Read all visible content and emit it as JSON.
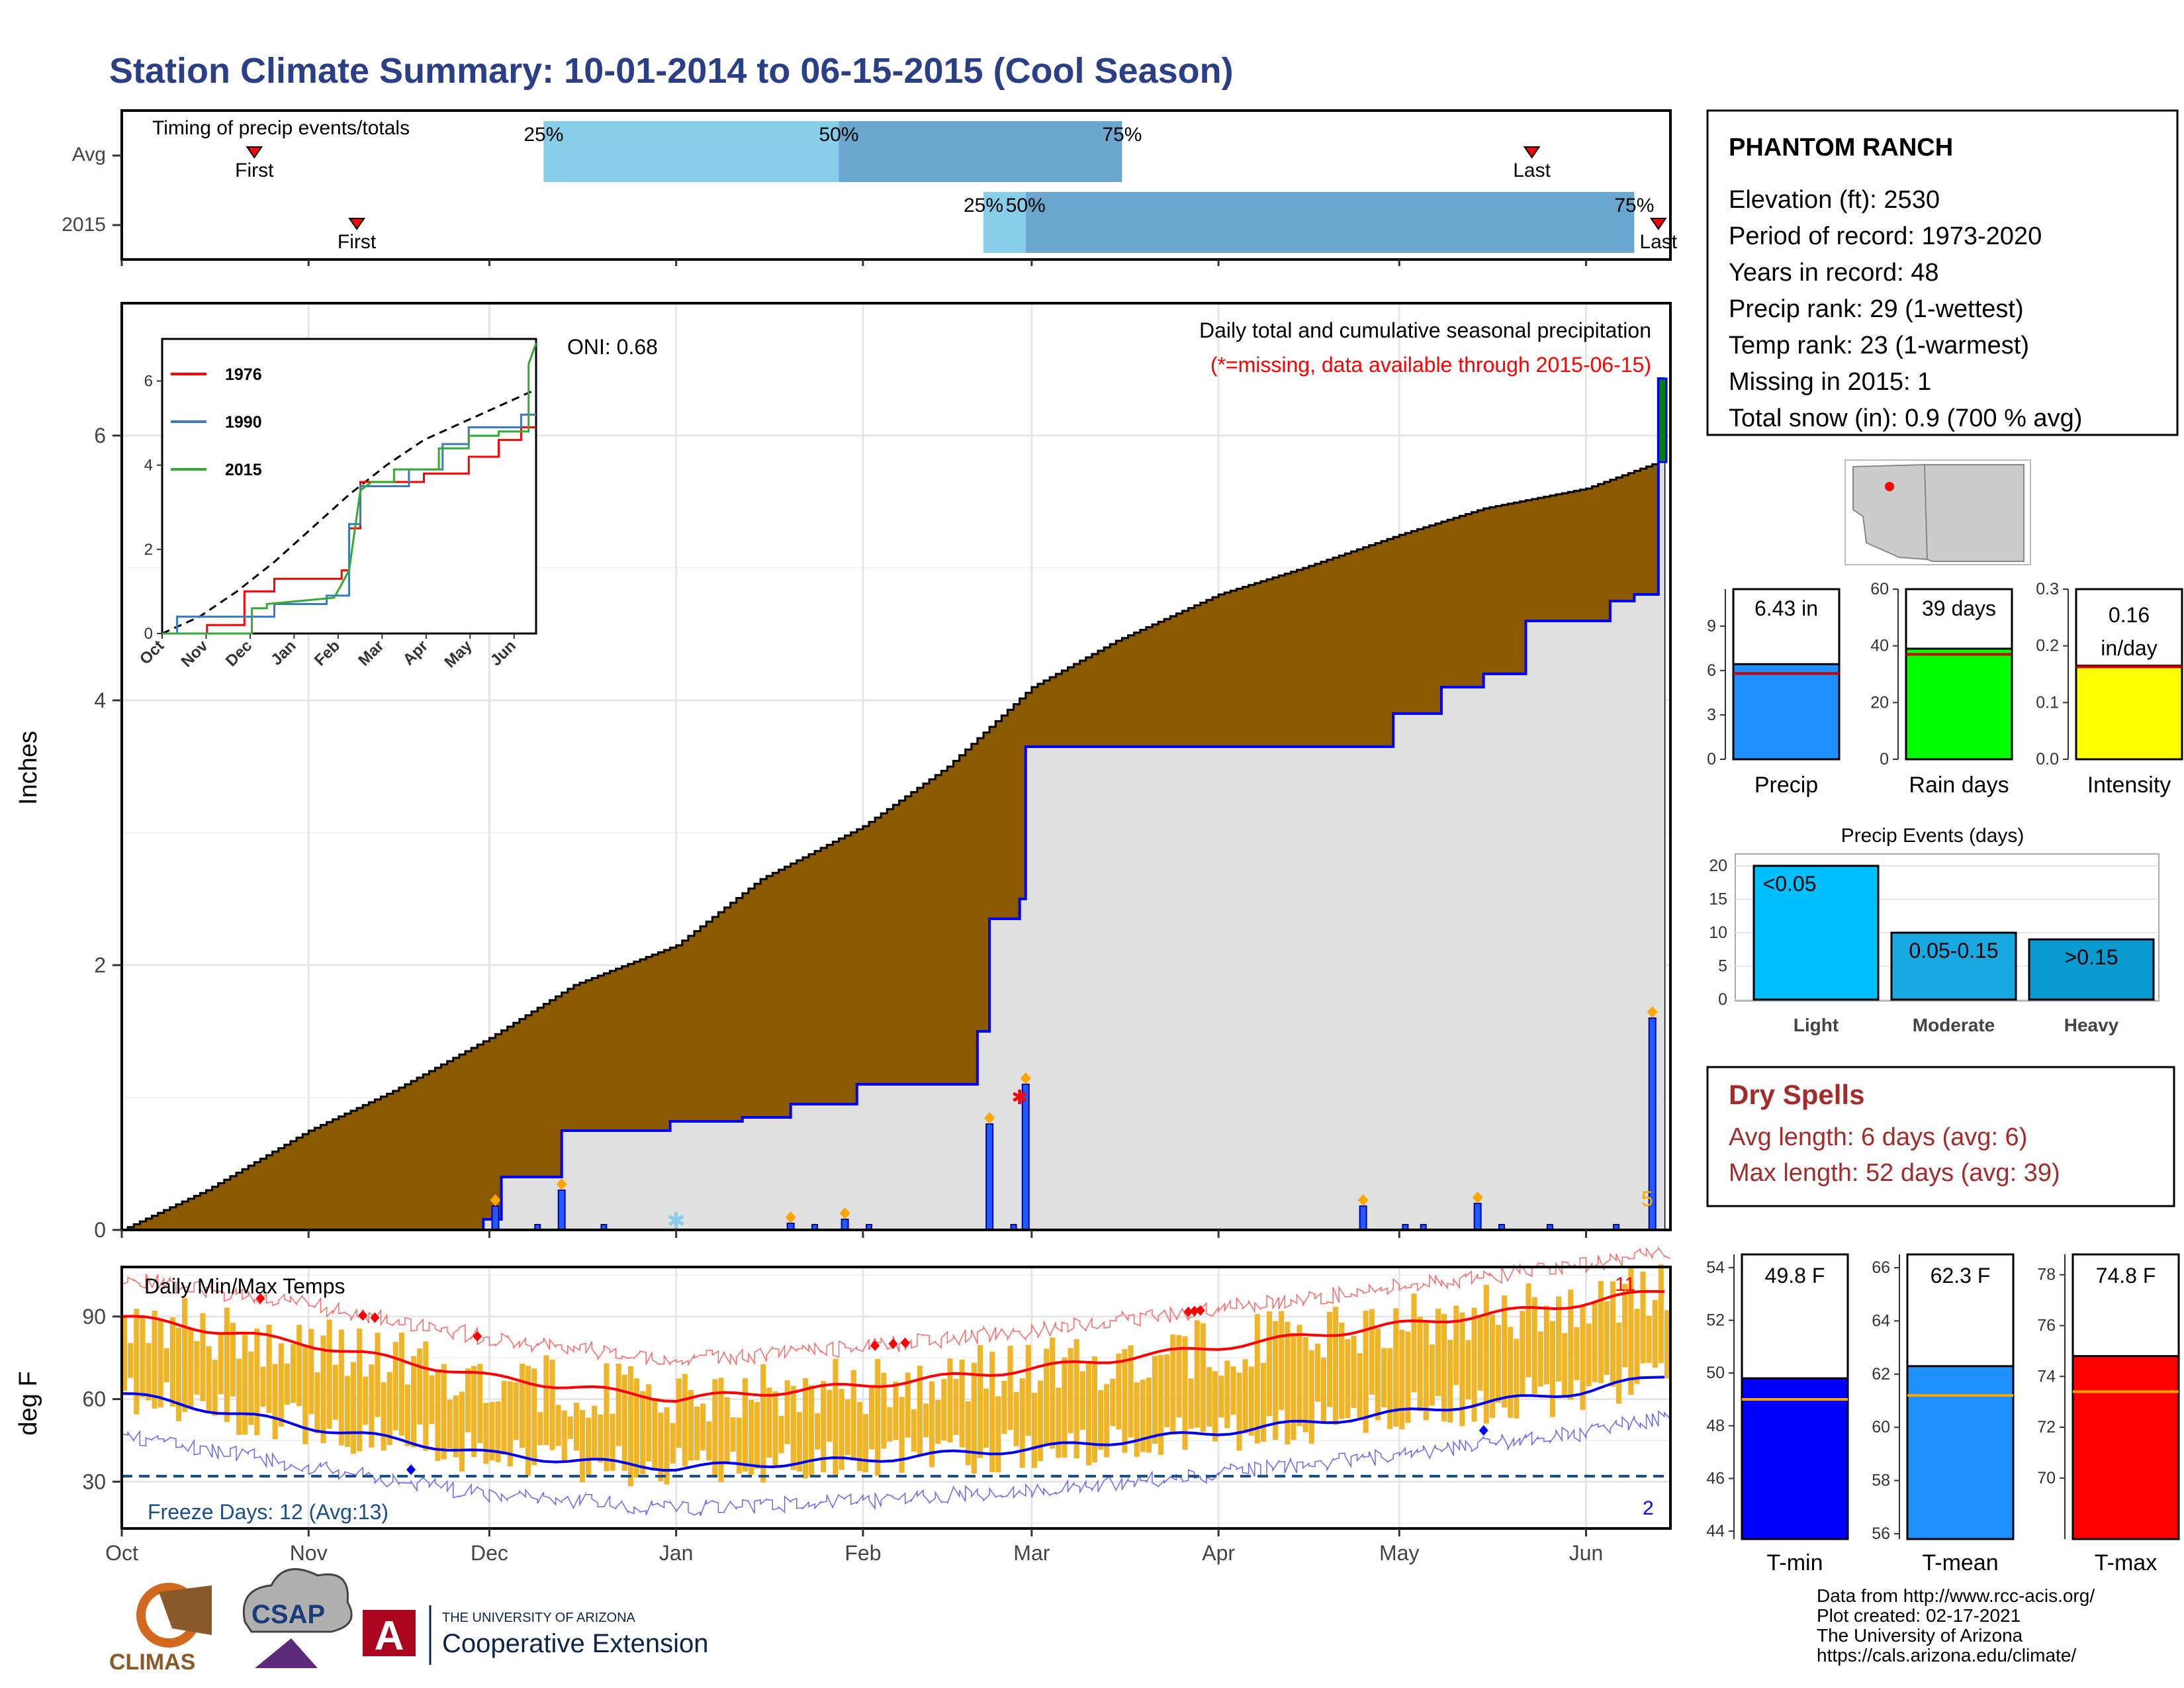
{
  "title": "Station Climate Summary: 10-01-2014 to 06-15-2015 (Cool Season)",
  "colors": {
    "title": "#2b3f87",
    "precip_fill": "#8b5a00",
    "precip_season_fill": "#e0e0e0",
    "season_line": "#0000ff",
    "green_box": "#008000",
    "avg_tmax": "#ff0000",
    "avg_tmin": "#0000ee",
    "temp_bar": "#f0b429",
    "missing_note": "#ff0000",
    "dry_spell": "#a52a2a",
    "quartile_light": "#87ceeb",
    "quartile_dark": "#6aa6cd"
  },
  "timing": {
    "label": "Timing of precip events/totals",
    "rows": [
      "Avg",
      "2015"
    ],
    "first_label": "First",
    "last_label": "Last",
    "quartile_labels": [
      "25%",
      "50%",
      "75%"
    ],
    "avg": {
      "first": "2014-10-23",
      "q25": "2014-12-10",
      "q50": "2015-01-28",
      "q75": "2015-03-16",
      "last": "2015-05-23"
    },
    "y2015": {
      "first": "2014-11-09",
      "q25": "2015-02-21",
      "q50": "2015-02-28",
      "q75": "2015-06-09",
      "last": "2015-06-13"
    }
  },
  "precip": {
    "ylabel": "Inches",
    "note": "Daily total and cumulative seasonal precipitation",
    "missing_note": "(*=missing, data available through 2015-06-15)",
    "oni": "ONI: 0.68",
    "corner_count": "5",
    "yticks": [
      0,
      2,
      4,
      6
    ],
    "ylim": [
      0,
      7.0
    ],
    "inset": {
      "yticks": [
        "0",
        "2",
        "4",
        "6"
      ],
      "months": [
        "Oct",
        "Nov",
        "Dec",
        "Jan",
        "Feb",
        "Mar",
        "Apr",
        "May",
        "Jun"
      ],
      "legend": [
        "1976",
        "1990",
        "2015"
      ],
      "legend_colors": [
        "#ff0000",
        "#3a7abf",
        "#33aa33"
      ]
    }
  },
  "temps": {
    "label": "Daily Min/Max Temps",
    "ylabel": "deg F",
    "yticks": [
      30,
      60,
      90
    ],
    "freeze_note": "Freeze Days: 12 (Avg:13)",
    "top_count": "11",
    "bottom_count": "2"
  },
  "months": [
    "Oct",
    "Nov",
    "Dec",
    "Jan",
    "Feb",
    "Mar",
    "Apr",
    "May",
    "Jun"
  ],
  "station": {
    "name": "PHANTOM RANCH",
    "lines": [
      "Elevation (ft): 2530",
      "Period of record: 1973-2020",
      "Years in record: 48",
      "Precip rank: 29 (1-wettest)",
      "Temp rank: 23 (1-warmest)",
      "Missing in 2015: 1",
      "Total snow (in): 0.9 (700 % avg)"
    ]
  },
  "summary_bars": [
    {
      "label": "Precip",
      "value_text": "6.43 in",
      "value": 6.43,
      "avg": 5.8,
      "ylim": [
        0,
        11.5
      ],
      "yticks": [
        "0",
        "3",
        "6",
        "9"
      ],
      "color": "#1e90ff"
    },
    {
      "label": "Rain days",
      "value_text": "39 days",
      "value": 39,
      "avg": 37,
      "ylim": [
        0,
        60
      ],
      "yticks": [
        "0",
        "20",
        "40",
        "60"
      ],
      "color": "#00ff00"
    },
    {
      "label": "Intensity",
      "value_text": "0.16 in/day",
      "value_line1": "0.16",
      "value_line2": "in/day",
      "value": 0.165,
      "avg": 0.163,
      "ylim": [
        0,
        0.3
      ],
      "yticks": [
        "0.0",
        "0.1",
        "0.2",
        "0.3"
      ],
      "color": "#ffff00"
    }
  ],
  "events": {
    "title": "Precip Events (days)",
    "categories": [
      "Light",
      "Moderate",
      "Heavy"
    ],
    "bar_labels": [
      "<0.05",
      "0.05-0.15",
      ">0.15"
    ],
    "values": [
      20,
      10,
      9
    ],
    "yticks": [
      "0",
      "5",
      "10",
      "15",
      "20"
    ],
    "colors": [
      "#00bfff",
      "#1aa8e0",
      "#0a9ad0"
    ]
  },
  "dry_spells": {
    "title": "Dry Spells",
    "avg_line": "Avg length: 6 days (avg: 6)",
    "max_line": "Max length: 52 days (avg: 39)"
  },
  "temp_bars": [
    {
      "label": "T-min",
      "value_text": "49.8 F",
      "value": 49.8,
      "avg": 49.0,
      "ylim": [
        43.7,
        54.5
      ],
      "yticks": [
        "44",
        "46",
        "48",
        "50",
        "52",
        "54"
      ],
      "color": "#0000ff"
    },
    {
      "label": "T-mean",
      "value_text": "62.3 F",
      "value": 62.3,
      "avg": 61.2,
      "ylim": [
        55.8,
        66.5
      ],
      "yticks": [
        "56",
        "58",
        "60",
        "62",
        "64",
        "66"
      ],
      "color": "#1e90ff"
    },
    {
      "label": "T-max",
      "value_text": "74.8 F",
      "value": 74.8,
      "avg": 73.4,
      "ylim": [
        67.6,
        78.8
      ],
      "yticks": [
        "70",
        "72",
        "74",
        "76",
        "78"
      ],
      "color": "#ff0000"
    }
  ],
  "footer": [
    "Data from http://www.rcc-acis.org/",
    "Plot created: 02-17-2021",
    "The University of Arizona",
    "https://cals.arizona.edu/climate/"
  ],
  "logos": {
    "climas": "CLIMAS",
    "csap": "CSAP",
    "ua_small": "THE UNIVERSITY OF ARIZONA",
    "ua_big": "Cooperative Extension",
    "ua_letter": "A"
  },
  "chart_data": [
    {
      "type": "line",
      "title": "Daily total and cumulative seasonal precipitation",
      "ylabel": "Inches",
      "x_range": [
        "2014-10-01",
        "2015-06-15"
      ],
      "ylim": [
        0,
        7
      ],
      "series": [
        {
          "name": "cumulative average",
          "x": [
            "2014-10-01",
            "2014-10-15",
            "2014-11-01",
            "2014-11-15",
            "2014-12-01",
            "2014-12-15",
            "2015-01-01",
            "2015-01-15",
            "2015-02-01",
            "2015-02-15",
            "2015-03-01",
            "2015-03-15",
            "2015-04-01",
            "2015-04-15",
            "2015-05-01",
            "2015-05-15",
            "2015-06-01",
            "2015-06-13"
          ],
          "values": [
            0.0,
            0.3,
            0.75,
            1.05,
            1.45,
            1.85,
            2.15,
            2.65,
            3.05,
            3.5,
            4.1,
            4.45,
            4.8,
            5.0,
            5.25,
            5.45,
            5.6,
            5.8
          ]
        },
        {
          "name": "cumulative 2015",
          "x": [
            "2014-10-01",
            "2014-11-30",
            "2014-12-03",
            "2014-12-13",
            "2014-12-31",
            "2015-01-12",
            "2015-01-20",
            "2015-01-31",
            "2015-02-20",
            "2015-02-22",
            "2015-02-27",
            "2015-02-28",
            "2015-04-25",
            "2015-04-30",
            "2015-05-08",
            "2015-05-15",
            "2015-05-22",
            "2015-06-05",
            "2015-06-09",
            "2015-06-13"
          ],
          "values": [
            0.0,
            0.08,
            0.4,
            0.75,
            0.82,
            0.85,
            0.95,
            1.1,
            1.5,
            2.35,
            2.5,
            3.65,
            3.65,
            3.9,
            4.1,
            4.2,
            4.6,
            4.75,
            4.8,
            6.43
          ]
        }
      ],
      "daily_precip_2015": {
        "dates": [
          "2014-12-02",
          "2014-12-13",
          "2015-01-20",
          "2015-01-29",
          "2015-02-22",
          "2015-02-28",
          "2015-04-25",
          "2015-05-14",
          "2015-06-12"
        ],
        "values": [
          0.18,
          0.3,
          0.05,
          0.08,
          0.8,
          1.1,
          0.18,
          0.2,
          1.6
        ]
      },
      "missing_date": "2015-02-27"
    },
    {
      "type": "line",
      "title": "Daily Min/Max Temps",
      "ylabel": "deg F",
      "yticks": [
        30,
        60,
        90
      ],
      "ylim": [
        13,
        108
      ],
      "series": [
        {
          "name": "avg max",
          "x": [
            "2014-10-01",
            "2014-11-01",
            "2014-12-01",
            "2015-01-01",
            "2015-02-01",
            "2015-03-01",
            "2015-04-01",
            "2015-05-01",
            "2015-06-01",
            "2015-06-15"
          ],
          "values": [
            90,
            80,
            68,
            60,
            65,
            71,
            79,
            87,
            95,
            100
          ]
        },
        {
          "name": "avg min",
          "x": [
            "2014-10-01",
            "2014-11-01",
            "2014-12-01",
            "2015-01-01",
            "2015-02-01",
            "2015-03-01",
            "2015-04-01",
            "2015-05-01",
            "2015-06-01",
            "2015-06-15"
          ],
          "values": [
            62,
            50,
            40,
            35,
            38,
            42,
            48,
            55,
            63,
            69
          ]
        }
      ],
      "freeze_threshold": 32
    }
  ]
}
